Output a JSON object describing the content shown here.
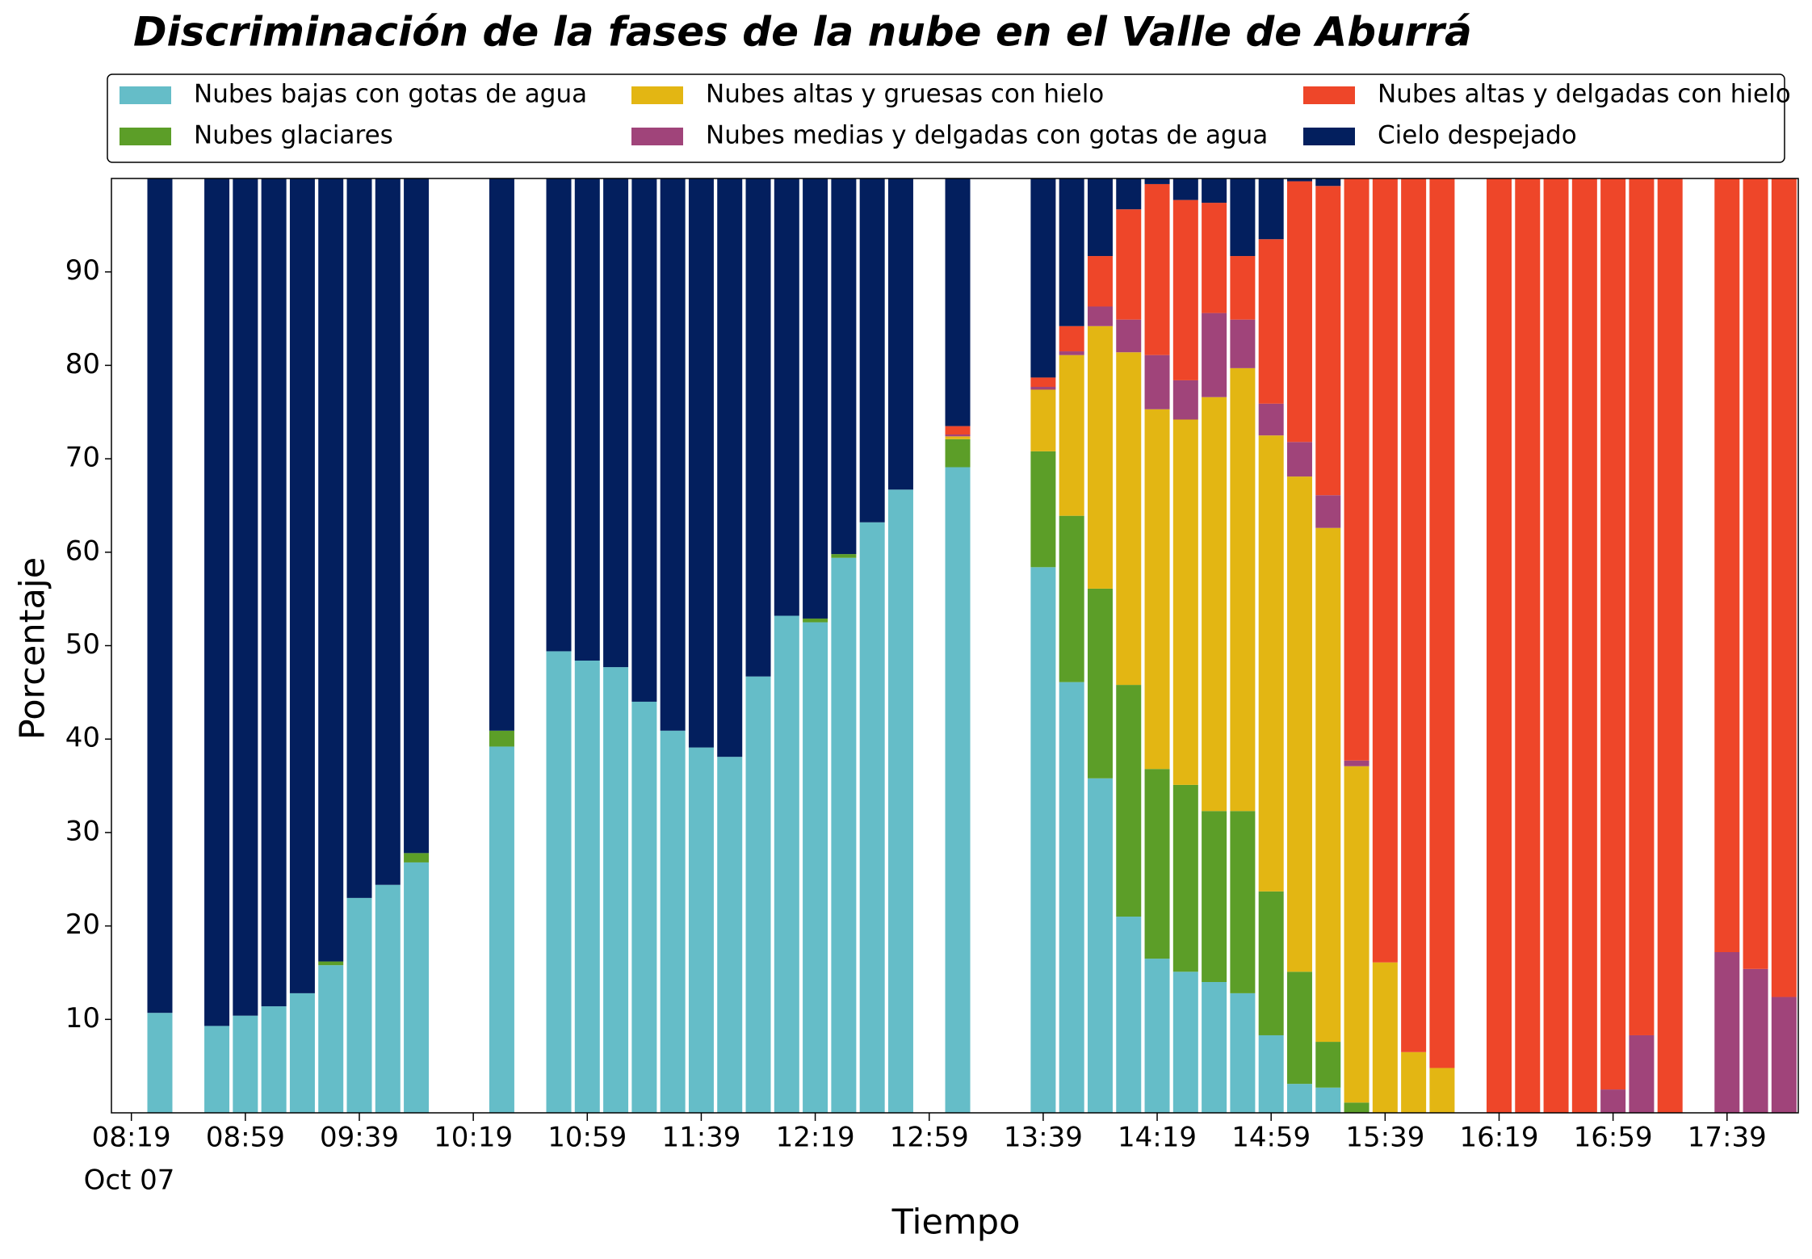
{
  "chart_data": {
    "type": "stacked_bar",
    "title": "Discriminación de la fases de la nube en el Valle de Aburrá",
    "xlabel": "Tiempo",
    "ylabel": "Porcentaje",
    "x_date_label": "Oct 07",
    "x": [
      "08:29",
      "08:49",
      "08:59",
      "09:09",
      "09:19",
      "09:29",
      "09:39",
      "09:49",
      "09:59",
      "10:29",
      "10:49",
      "10:59",
      "11:09",
      "11:19",
      "11:29",
      "11:39",
      "11:49",
      "11:59",
      "12:09",
      "12:19",
      "12:29",
      "12:39",
      "12:49",
      "13:09",
      "13:39",
      "13:49",
      "13:59",
      "14:09",
      "14:19",
      "14:29",
      "14:39",
      "14:49",
      "14:59",
      "15:09",
      "15:19",
      "15:29",
      "15:39",
      "15:49",
      "15:59",
      "16:19",
      "16:29",
      "16:39",
      "16:49",
      "16:59",
      "17:09",
      "17:19",
      "17:39",
      "17:49",
      "17:59"
    ],
    "xlim": [
      "08:12",
      "18:04"
    ],
    "xticks": [
      "08:19",
      "08:59",
      "09:39",
      "10:19",
      "10:59",
      "11:39",
      "12:19",
      "12:59",
      "13:39",
      "14:19",
      "14:59",
      "15:39",
      "16:19",
      "16:59",
      "17:39"
    ],
    "ylim": [
      0,
      100
    ],
    "yticks": [
      10,
      20,
      30,
      40,
      50,
      60,
      70,
      80,
      90
    ],
    "legend_position": "top",
    "series": [
      {
        "name": "Nubes bajas con gotas de agua",
        "color": "#65bdc8",
        "values": [
          10.7,
          9.3,
          10.4,
          11.4,
          12.8,
          15.8,
          23.0,
          24.4,
          26.8,
          39.2,
          49.4,
          48.4,
          47.7,
          44.0,
          40.9,
          39.1,
          38.1,
          46.7,
          53.2,
          52.5,
          59.4,
          63.2,
          66.7,
          69.1,
          58.4,
          46.1,
          35.8,
          21.0,
          16.5,
          15.1,
          14.0,
          12.8,
          8.3,
          3.1,
          2.7,
          0,
          0,
          0,
          0,
          0,
          0,
          0,
          0,
          0,
          0,
          0,
          0,
          0,
          0
        ]
      },
      {
        "name": "Nubes glaciares",
        "color": "#5c9e28",
        "values": [
          0,
          0,
          0,
          0,
          0,
          0.4,
          0,
          0,
          1.0,
          1.7,
          0,
          0,
          0,
          0,
          0,
          0,
          0,
          0,
          0,
          0.4,
          0.4,
          0,
          0,
          3.0,
          12.4,
          17.8,
          20.3,
          24.8,
          20.3,
          20.0,
          18.3,
          19.5,
          15.4,
          12.0,
          4.9,
          1.1,
          0,
          0,
          0,
          0,
          0,
          0,
          0,
          0,
          0,
          0,
          0,
          0,
          0
        ]
      },
      {
        "name": "Nubes altas y gruesas con hielo",
        "color": "#e3b613",
        "values": [
          0,
          0,
          0,
          0,
          0,
          0,
          0,
          0,
          0,
          0,
          0,
          0,
          0,
          0,
          0,
          0,
          0,
          0,
          0,
          0,
          0,
          0,
          0,
          0.3,
          6.6,
          17.2,
          28.1,
          35.6,
          38.5,
          39.1,
          44.3,
          47.4,
          48.8,
          53.0,
          55.0,
          36.0,
          16.1,
          6.5,
          4.8,
          0,
          0,
          0,
          0,
          0,
          0,
          0,
          0,
          0,
          0
        ]
      },
      {
        "name": "Nubes medias y delgadas con gotas de agua",
        "color": "#a0447a",
        "values": [
          0,
          0,
          0,
          0,
          0,
          0,
          0,
          0,
          0,
          0,
          0,
          0,
          0,
          0,
          0,
          0,
          0,
          0,
          0,
          0,
          0,
          0,
          0,
          0.2,
          0.3,
          0.4,
          2.1,
          3.5,
          5.8,
          4.2,
          9.0,
          5.2,
          3.4,
          3.7,
          3.5,
          0.6,
          0,
          0,
          0,
          0,
          0,
          0,
          0,
          2.5,
          8.3,
          0,
          17.2,
          15.4,
          12.4
        ]
      },
      {
        "name": "Nubes altas y delgadas con hielo",
        "color": "#ee4629",
        "values": [
          0,
          0,
          0,
          0,
          0,
          0,
          0,
          0,
          0,
          0,
          0,
          0,
          0,
          0,
          0,
          0,
          0,
          0,
          0,
          0,
          0,
          0,
          0,
          0.9,
          1.0,
          2.7,
          5.4,
          11.8,
          18.3,
          19.3,
          11.8,
          6.8,
          17.6,
          27.9,
          33.1,
          62.3,
          83.9,
          93.5,
          95.2,
          100,
          100,
          100,
          100,
          97.5,
          91.7,
          100,
          82.8,
          84.6,
          87.6
        ]
      },
      {
        "name": "Cielo despejado",
        "color": "#031f5e",
        "values": [
          89.3,
          90.7,
          89.6,
          88.6,
          87.2,
          83.8,
          77.0,
          75.6,
          72.2,
          59.1,
          50.6,
          51.6,
          52.3,
          56.0,
          59.1,
          60.9,
          61.9,
          53.3,
          46.8,
          47.1,
          40.2,
          36.8,
          33.3,
          26.5,
          21.3,
          15.8,
          8.3,
          3.3,
          0.6,
          2.3,
          2.6,
          8.3,
          6.5,
          0.3,
          0.8,
          0,
          0,
          0,
          0,
          0,
          0,
          0,
          0,
          0,
          0,
          0,
          0,
          0,
          0
        ]
      }
    ]
  }
}
